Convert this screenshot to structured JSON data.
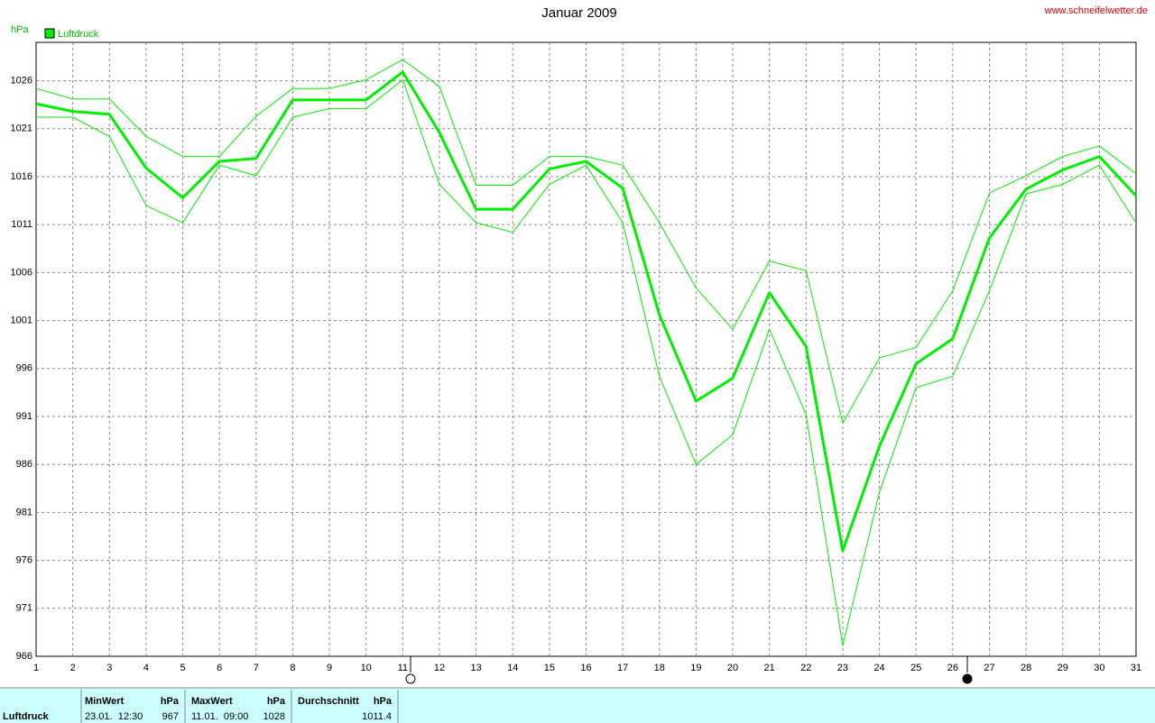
{
  "chart_data": {
    "type": "line",
    "title": "Januar 2009",
    "source": "www.schneifelwetter.de",
    "y_label": "hPa",
    "x": [
      1,
      2,
      3,
      4,
      5,
      6,
      7,
      8,
      9,
      10,
      11,
      12,
      13,
      14,
      15,
      16,
      17,
      18,
      19,
      20,
      21,
      22,
      23,
      24,
      25,
      26,
      27,
      28,
      29,
      30,
      31
    ],
    "xlim": [
      1,
      31
    ],
    "ylim": [
      966,
      1030
    ],
    "yticks": [
      966,
      971,
      976,
      981,
      986,
      991,
      996,
      1001,
      1006,
      1011,
      1016,
      1021,
      1026
    ],
    "grid": true,
    "legend": "top-left",
    "series": [
      {
        "name": "Luftdruck",
        "color": "#00ee00",
        "values": [
          1023.6,
          1022.8,
          1022.5,
          1016.9,
          1013.8,
          1017.6,
          1017.9,
          1024.0,
          1024.0,
          1024.0,
          1026.9,
          1020.6,
          1012.6,
          1012.6,
          1016.8,
          1017.6,
          1014.8,
          1001.6,
          992.6,
          995.0,
          1003.9,
          998.3,
          977.0,
          987.9,
          996.5,
          999.1,
          1009.6,
          1014.7,
          1016.7,
          1018.1,
          1014.0
        ]
      },
      {
        "color": "#00ee00",
        "values": [
          1025.2,
          1024.1,
          1024.1,
          1020.2,
          1018.1,
          1018.1,
          1022.3,
          1025.2,
          1025.2,
          1026.1,
          1028.2,
          1025.4,
          1015.1,
          1015.1,
          1018.1,
          1018.1,
          1017.2,
          1011.2,
          1004.4,
          1000.1,
          1007.2,
          1006.2,
          990.3,
          997.1,
          998.2,
          1004.1,
          1014.3,
          1016.1,
          1018.1,
          1019.2,
          1016.3
        ]
      },
      {
        "color": "#00ee00",
        "values": [
          1022.2,
          1022.2,
          1020.2,
          1013.0,
          1011.2,
          1017.2,
          1016.1,
          1022.2,
          1023.1,
          1023.1,
          1026.1,
          1015.2,
          1011.2,
          1010.2,
          1015.2,
          1017.2,
          1011.2,
          995.2,
          986.0,
          989.1,
          1000.1,
          991.2,
          967.1,
          983.1,
          994.0,
          995.2,
          1004.1,
          1014.2,
          1015.2,
          1017.2,
          1011.2
        ]
      }
    ]
  },
  "summary": {
    "label": "Luftdruck",
    "columns": [
      {
        "title": "MinWert",
        "unit": "hPa",
        "date": "23.01.  12:30",
        "value": 967
      },
      {
        "title": "MaxWert",
        "unit": "hPa",
        "date": "11.01.  09:00",
        "value": 1028
      },
      {
        "title": "Durchschnitt",
        "unit": "hPa",
        "value": 1011.4
      }
    ]
  }
}
